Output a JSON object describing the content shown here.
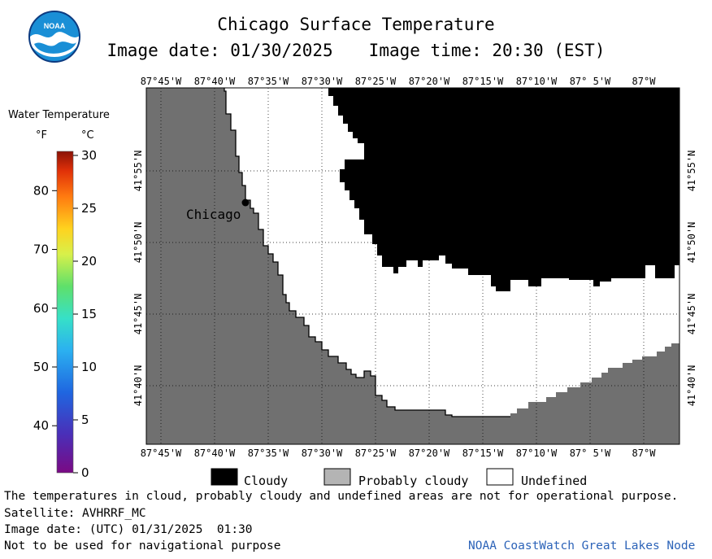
{
  "header": {
    "title": "Chicago Surface Temperature",
    "image_date_label": "Image date: 01/30/2025",
    "image_time_label": "Image time: 20:30 (EST)",
    "logo_text": "NOAA"
  },
  "scale": {
    "title": "Water Temperature",
    "unit_f": "°F",
    "unit_c": "°C",
    "f_ticks": [
      "80",
      "70",
      "60",
      "50",
      "40"
    ],
    "c_ticks": [
      "30",
      "25",
      "20",
      "15",
      "10",
      "5",
      "0"
    ]
  },
  "map": {
    "lon_ticks": [
      "87°45'W",
      "87°40'W",
      "87°35'W",
      "87°30'W",
      "87°25'W",
      "87°20'W",
      "87°15'W",
      "87°10'W",
      "87° 5'W",
      "87°W"
    ],
    "lat_ticks": [
      "41°55'N",
      "41°50'N",
      "41°45'N",
      "41°40'N"
    ],
    "city_label": "Chicago",
    "colors": {
      "land": "#707070",
      "cloudy": "#000000",
      "undefined": "#ffffff",
      "probably_cloudy": "#b4b4b4"
    }
  },
  "legend": {
    "cloudy": "Cloudy",
    "probably_cloudy": "Probably cloudy",
    "undefined": "Undefined"
  },
  "footer": {
    "disclaimer": "The temperatures in cloud, probably cloudy and undefined areas are not for operational purpose.",
    "satellite": "Satellite: AVHRRF_MC",
    "utc_date": "Image date: (UTC) 01/31/2025  01:30",
    "nav_warning": "Not to be used for navigational purpose",
    "credit": "NOAA CoastWatch Great Lakes Node"
  }
}
